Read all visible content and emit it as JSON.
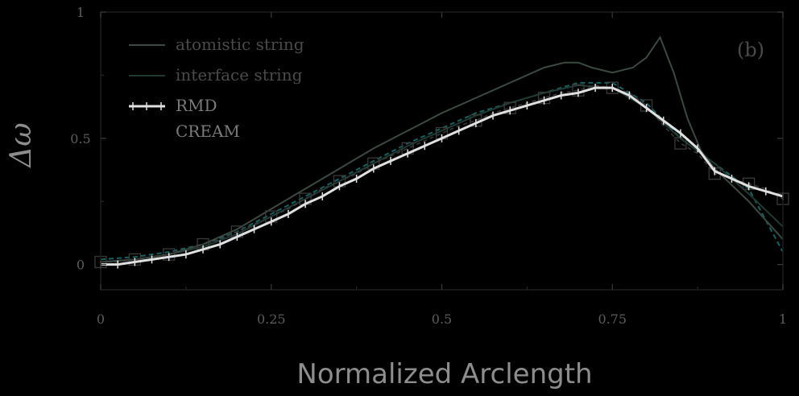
{
  "chart_data": {
    "type": "line",
    "xlabel": "Normalized Arclength",
    "ylabel": "Δω",
    "panel_label": "(b)",
    "xlim": [
      0,
      1
    ],
    "ylim": [
      -0.1,
      1.0
    ],
    "x_ticks": [
      0,
      0.25,
      0.5,
      0.75,
      1
    ],
    "x_tick_labels": [
      "0",
      "0.25",
      "0.5",
      "0.75",
      "1"
    ],
    "y_ticks": [
      0,
      0.5,
      1
    ],
    "y_tick_labels": [
      "0",
      "0.5",
      "1"
    ],
    "legend_position": "top-left",
    "series": [
      {
        "name": "atomistic string",
        "color": "#3a4a40",
        "style": "solid",
        "x": [
          0,
          0.05,
          0.1,
          0.15,
          0.2,
          0.25,
          0.3,
          0.35,
          0.4,
          0.45,
          0.5,
          0.55,
          0.6,
          0.65,
          0.68,
          0.7,
          0.72,
          0.75,
          0.78,
          0.8,
          0.82,
          0.84,
          0.86,
          0.88,
          0.9,
          0.95,
          1.0
        ],
        "y": [
          0.01,
          0.02,
          0.04,
          0.08,
          0.14,
          0.22,
          0.3,
          0.38,
          0.46,
          0.53,
          0.6,
          0.66,
          0.72,
          0.78,
          0.8,
          0.8,
          0.78,
          0.76,
          0.78,
          0.82,
          0.9,
          0.76,
          0.58,
          0.45,
          0.38,
          0.25,
          0.1
        ]
      },
      {
        "name": "interface string",
        "color": "#203a33",
        "style": "solid",
        "x": [
          0,
          0.05,
          0.1,
          0.15,
          0.2,
          0.25,
          0.3,
          0.35,
          0.4,
          0.45,
          0.5,
          0.55,
          0.6,
          0.65,
          0.7,
          0.75,
          0.8,
          0.85,
          0.9,
          0.95,
          1.0
        ],
        "y": [
          0.01,
          0.02,
          0.04,
          0.07,
          0.12,
          0.19,
          0.26,
          0.33,
          0.4,
          0.47,
          0.53,
          0.59,
          0.64,
          0.68,
          0.71,
          0.7,
          0.62,
          0.5,
          0.4,
          0.28,
          0.15
        ]
      },
      {
        "name": "RMD",
        "color": "#e0e0e0",
        "style": "solid-markers",
        "x": [
          0,
          0.025,
          0.05,
          0.075,
          0.1,
          0.125,
          0.15,
          0.175,
          0.2,
          0.225,
          0.25,
          0.275,
          0.3,
          0.325,
          0.35,
          0.375,
          0.4,
          0.425,
          0.45,
          0.475,
          0.5,
          0.525,
          0.55,
          0.575,
          0.6,
          0.625,
          0.65,
          0.675,
          0.7,
          0.725,
          0.75,
          0.775,
          0.8,
          0.825,
          0.85,
          0.875,
          0.9,
          0.925,
          0.95,
          0.975,
          1.0
        ],
        "y": [
          0.0,
          0.0,
          0.01,
          0.02,
          0.03,
          0.04,
          0.06,
          0.08,
          0.11,
          0.14,
          0.17,
          0.2,
          0.24,
          0.27,
          0.31,
          0.34,
          0.38,
          0.41,
          0.44,
          0.47,
          0.5,
          0.53,
          0.56,
          0.59,
          0.61,
          0.63,
          0.65,
          0.67,
          0.68,
          0.7,
          0.7,
          0.67,
          0.62,
          0.57,
          0.52,
          0.46,
          0.37,
          0.34,
          0.31,
          0.29,
          0.27
        ]
      },
      {
        "name": "CREAM",
        "color": "#3a3a3a",
        "style": "dashed-squares",
        "x": [
          0,
          0.025,
          0.05,
          0.075,
          0.1,
          0.125,
          0.15,
          0.175,
          0.2,
          0.225,
          0.25,
          0.275,
          0.3,
          0.325,
          0.35,
          0.375,
          0.4,
          0.425,
          0.45,
          0.475,
          0.5,
          0.525,
          0.55,
          0.575,
          0.6,
          0.625,
          0.65,
          0.675,
          0.7,
          0.725,
          0.75,
          0.775,
          0.8,
          0.825,
          0.85,
          0.875,
          0.9,
          0.925,
          0.95,
          0.975,
          1.0
        ],
        "y": [
          0.01,
          0.01,
          0.02,
          0.03,
          0.04,
          0.06,
          0.08,
          0.1,
          0.13,
          0.16,
          0.19,
          0.22,
          0.26,
          0.3,
          0.33,
          0.36,
          0.4,
          0.43,
          0.46,
          0.49,
          0.52,
          0.55,
          0.57,
          0.6,
          0.62,
          0.64,
          0.66,
          0.68,
          0.69,
          0.71,
          0.7,
          0.68,
          0.63,
          0.55,
          0.48,
          0.44,
          0.36,
          0.34,
          0.32,
          0.3,
          0.26
        ]
      },
      {
        "name": "",
        "color": "#1d8a8a",
        "style": "dashed",
        "x": [
          0,
          0.05,
          0.1,
          0.15,
          0.2,
          0.25,
          0.3,
          0.35,
          0.4,
          0.45,
          0.5,
          0.55,
          0.6,
          0.65,
          0.7,
          0.75,
          0.8,
          0.85,
          0.9,
          0.95,
          1.0
        ],
        "y": [
          0.02,
          0.03,
          0.05,
          0.08,
          0.13,
          0.2,
          0.27,
          0.34,
          0.41,
          0.48,
          0.54,
          0.6,
          0.64,
          0.68,
          0.72,
          0.72,
          0.64,
          0.5,
          0.4,
          0.3,
          0.05
        ]
      }
    ]
  }
}
